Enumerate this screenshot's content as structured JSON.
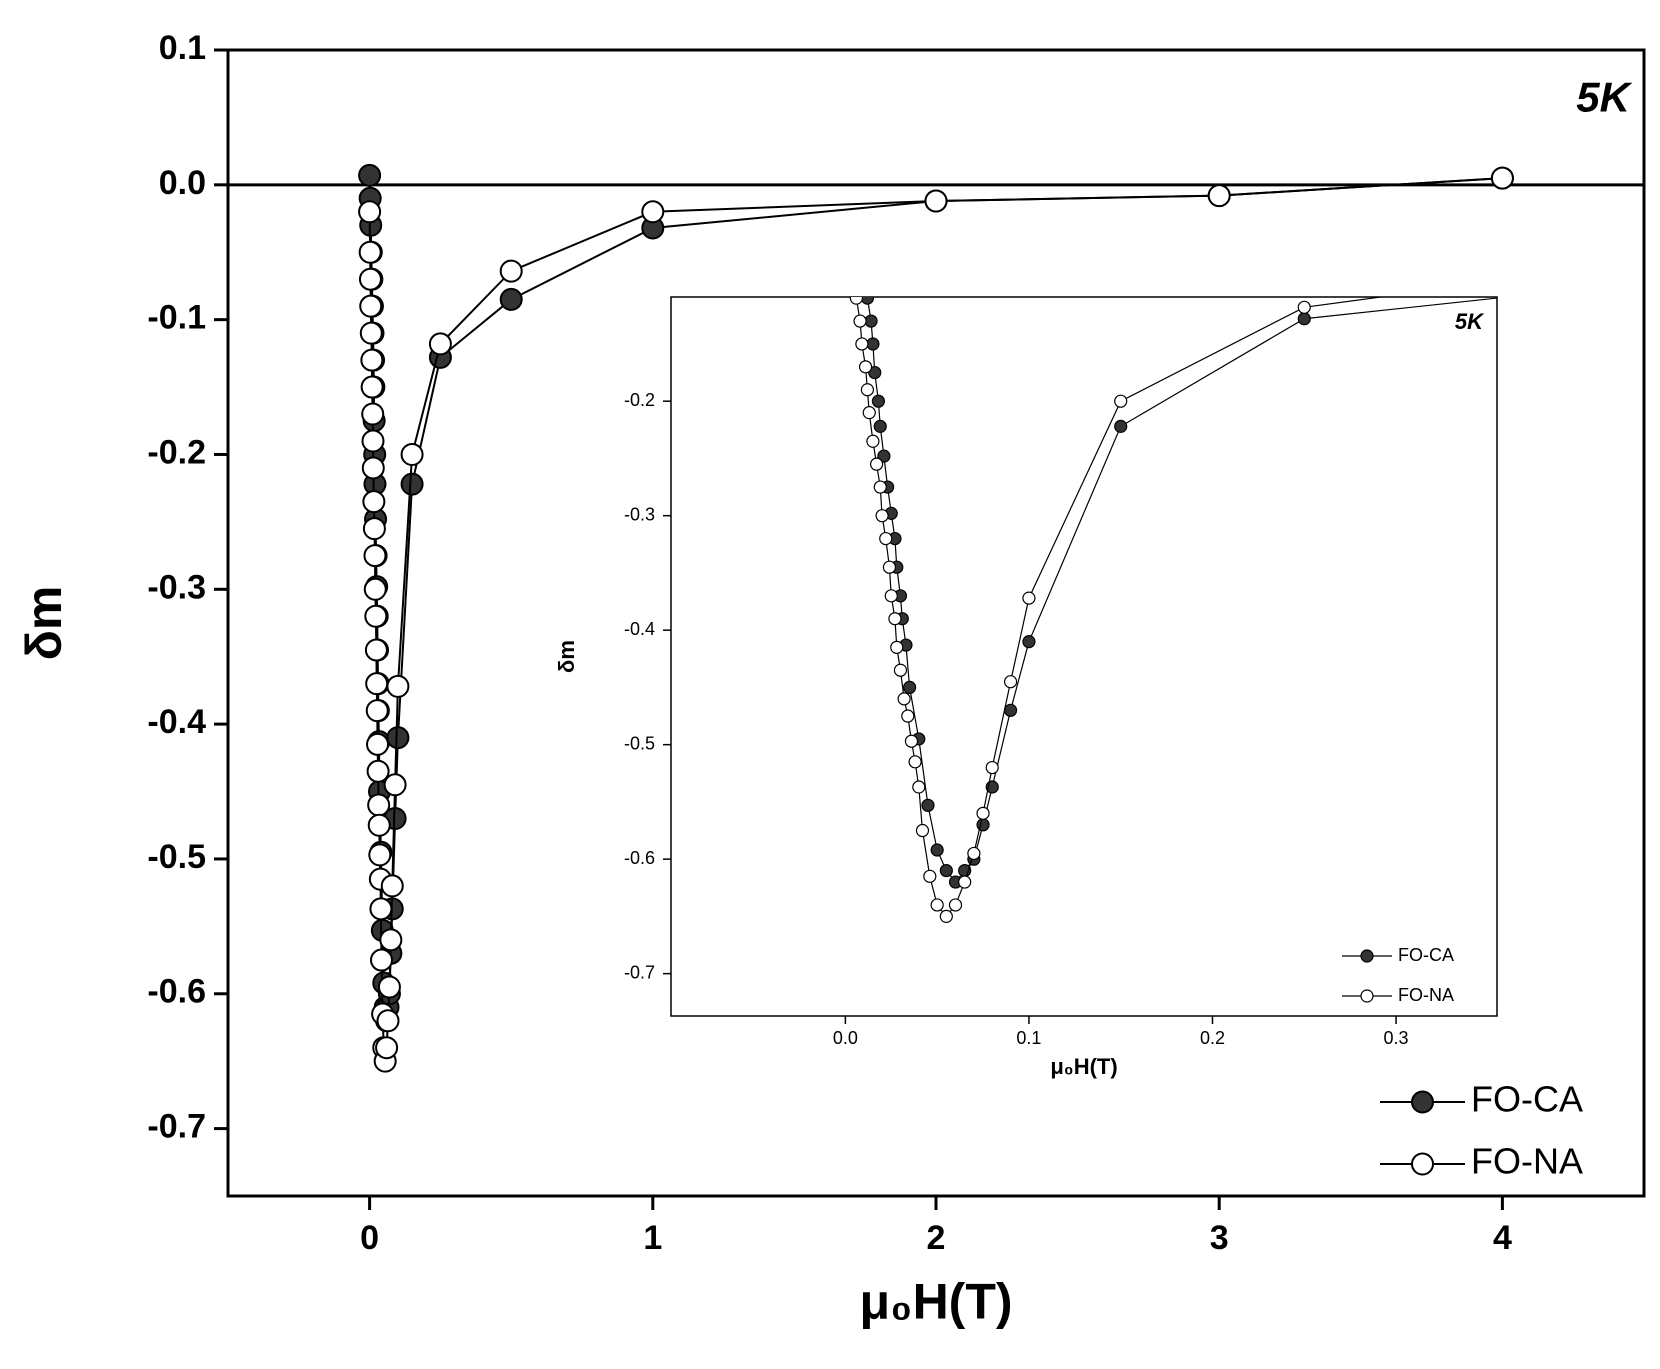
{
  "chart_data": [
    {
      "type": "line",
      "x_label": "μ₀H(T)",
      "y_label": "δm",
      "annotation": "5K",
      "zero_line": true,
      "legend": "lower right",
      "xlim": [
        -0.5,
        4.5
      ],
      "xticks": [
        0,
        1,
        2,
        3,
        4
      ],
      "ylim": [
        -0.75,
        0.1
      ],
      "yticks": [
        0.1,
        {
          "value": 0,
          "label": "0.0"
        },
        -0.1,
        -0.2,
        -0.3,
        -0.4,
        -0.5,
        -0.6,
        -0.7
      ],
      "series": [
        {
          "name": "FO-CA",
          "color": "#333333",
          "filled": true,
          "x": [
            0,
            0.002,
            0.004,
            0.006,
            0.008,
            0.01,
            0.012,
            0.014,
            0.015,
            0.016,
            0.018,
            0.019,
            0.021,
            0.023,
            0.025,
            0.027,
            0.028,
            0.03,
            0.031,
            0.033,
            0.035,
            0.04,
            0.045,
            0.05,
            0.055,
            0.06,
            0.065,
            0.07,
            0.075,
            0.08,
            0.09,
            0.1,
            0.15,
            0.25,
            0.5,
            1,
            2,
            3,
            4
          ],
          "values": [
            0.007,
            -0.01,
            -0.03,
            -0.05,
            -0.07,
            -0.09,
            -0.11,
            -0.13,
            -0.15,
            -0.175,
            -0.2,
            -0.222,
            -0.248,
            -0.275,
            -0.298,
            -0.32,
            -0.345,
            -0.37,
            -0.39,
            -0.413,
            -0.45,
            -0.495,
            -0.553,
            -0.592,
            -0.61,
            -0.62,
            -0.61,
            -0.6,
            -0.57,
            -0.537,
            -0.47,
            -0.41,
            -0.222,
            -0.128,
            -0.085,
            -0.032,
            -0.012,
            -0.008,
            0.005
          ]
        },
        {
          "name": "FO-NA",
          "color": "#ffffff",
          "filled": false,
          "x": [
            0,
            0.002,
            0.003,
            0.004,
            0.006,
            0.008,
            0.009,
            0.011,
            0.012,
            0.013,
            0.015,
            0.017,
            0.019,
            0.02,
            0.022,
            0.024,
            0.025,
            0.027,
            0.028,
            0.03,
            0.032,
            0.034,
            0.036,
            0.038,
            0.04,
            0.042,
            0.046,
            0.05,
            0.055,
            0.06,
            0.065,
            0.07,
            0.075,
            0.08,
            0.09,
            0.1,
            0.15,
            0.25,
            0.5,
            1,
            2,
            3,
            4
          ],
          "values": [
            -0.02,
            -0.05,
            -0.07,
            -0.09,
            -0.11,
            -0.13,
            -0.15,
            -0.17,
            -0.19,
            -0.21,
            -0.235,
            -0.255,
            -0.275,
            -0.3,
            -0.32,
            -0.345,
            -0.37,
            -0.39,
            -0.415,
            -0.435,
            -0.46,
            -0.475,
            -0.497,
            -0.515,
            -0.537,
            -0.575,
            -0.615,
            -0.64,
            -0.65,
            -0.64,
            -0.62,
            -0.595,
            -0.56,
            -0.52,
            -0.445,
            -0.372,
            -0.2,
            -0.118,
            -0.064,
            -0.02,
            -0.012,
            -0.008,
            0.005
          ]
        }
      ]
    },
    {
      "type": "line",
      "x_label": "μ₀H(T)",
      "y_label": "δm",
      "annotation": "5K",
      "zero_line": false,
      "legend": "lower right",
      "xlim": [
        -0.095,
        0.355
      ],
      "xticks": [
        {
          "value": 0,
          "label": "0.0"
        },
        0.1,
        0.2,
        0.3
      ],
      "ylim": [
        -0.737,
        -0.109
      ],
      "yticks": [
        -0.2,
        -0.3,
        -0.4,
        -0.5,
        -0.6,
        -0.7
      ],
      "series": [
        {
          "name": "FO-CA",
          "color": "#333333",
          "filled": true,
          "x": [
            0.012,
            0.014,
            0.015,
            0.016,
            0.018,
            0.019,
            0.021,
            0.023,
            0.025,
            0.027,
            0.028,
            0.03,
            0.031,
            0.033,
            0.035,
            0.04,
            0.045,
            0.05,
            0.055,
            0.06,
            0.065,
            0.07,
            0.075,
            0.08,
            0.09,
            0.1,
            0.15,
            0.25,
            0.5
          ],
          "values": [
            -0.11,
            -0.13,
            -0.15,
            -0.175,
            -0.2,
            -0.222,
            -0.248,
            -0.275,
            -0.298,
            -0.32,
            -0.345,
            -0.37,
            -0.39,
            -0.413,
            -0.45,
            -0.495,
            -0.553,
            -0.592,
            -0.61,
            -0.62,
            -0.61,
            -0.6,
            -0.57,
            -0.537,
            -0.47,
            -0.41,
            -0.222,
            -0.128,
            -0.085
          ]
        },
        {
          "name": "FO-NA",
          "color": "#ffffff",
          "filled": false,
          "x": [
            0.006,
            0.008,
            0.009,
            0.011,
            0.012,
            0.013,
            0.015,
            0.017,
            0.019,
            0.02,
            0.022,
            0.024,
            0.025,
            0.027,
            0.028,
            0.03,
            0.032,
            0.034,
            0.036,
            0.038,
            0.04,
            0.042,
            0.046,
            0.05,
            0.055,
            0.06,
            0.065,
            0.07,
            0.075,
            0.08,
            0.09,
            0.1,
            0.15,
            0.25,
            0.5
          ],
          "values": [
            -0.11,
            -0.13,
            -0.15,
            -0.17,
            -0.19,
            -0.21,
            -0.235,
            -0.255,
            -0.275,
            -0.3,
            -0.32,
            -0.345,
            -0.37,
            -0.39,
            -0.415,
            -0.435,
            -0.46,
            -0.475,
            -0.497,
            -0.515,
            -0.537,
            -0.575,
            -0.615,
            -0.64,
            -0.65,
            -0.64,
            -0.62,
            -0.595,
            -0.56,
            -0.52,
            -0.445,
            -0.372,
            -0.2,
            -0.118,
            -0.064
          ]
        }
      ]
    }
  ]
}
